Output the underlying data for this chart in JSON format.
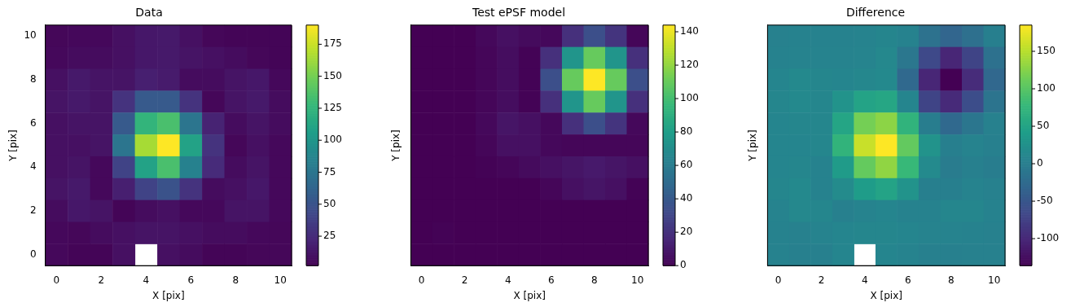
{
  "chart_data": [
    {
      "type": "heatmap",
      "title": "Data",
      "xlabel": "X [pix]",
      "ylabel": "Y [pix]",
      "categories": [
        "0",
        null,
        "2",
        null,
        "4",
        null,
        "6",
        null,
        "8",
        null,
        "10"
      ],
      "y_categories": [
        "10",
        null,
        "8",
        null,
        "6",
        null,
        "4",
        null,
        "2",
        null,
        "0"
      ],
      "cells": [
        [
          5,
          6,
          6,
          10,
          14,
          15,
          10,
          5,
          4,
          4,
          4
        ],
        [
          6,
          8,
          8,
          10,
          14,
          15,
          12,
          10,
          8,
          5,
          4
        ],
        [
          10,
          15,
          12,
          12,
          18,
          16,
          8,
          8,
          12,
          14,
          6
        ],
        [
          12,
          15,
          12,
          30,
          55,
          55,
          30,
          5,
          12,
          15,
          8
        ],
        [
          10,
          12,
          12,
          55,
          125,
          135,
          75,
          20,
          8,
          12,
          8
        ],
        [
          10,
          10,
          12,
          75,
          165,
          190,
          110,
          30,
          5,
          10,
          6
        ],
        [
          10,
          12,
          6,
          40,
          110,
          135,
          85,
          25,
          8,
          12,
          6
        ],
        [
          12,
          15,
          6,
          18,
          40,
          50,
          30,
          8,
          10,
          14,
          6
        ],
        [
          8,
          14,
          12,
          4,
          8,
          10,
          6,
          6,
          12,
          12,
          6
        ],
        [
          6,
          5,
          8,
          10,
          12,
          12,
          10,
          8,
          8,
          6,
          5
        ],
        [
          6,
          4,
          4,
          10,
          null,
          10,
          8,
          4,
          4,
          5,
          5
        ]
      ],
      "clim": [
        2,
        190
      ],
      "cticks": [
        25,
        50,
        75,
        100,
        125,
        150,
        175
      ]
    },
    {
      "type": "heatmap",
      "title": "Test ePSF model",
      "xlabel": "X [pix]",
      "ylabel": "Y [pix]",
      "tick_labels": "x",
      "categories": [
        "0",
        null,
        "2",
        null,
        "4",
        null,
        "6",
        null,
        "8",
        null,
        "10"
      ],
      "y_categories": [
        "10",
        null,
        "8",
        null,
        "6",
        null,
        "4",
        null,
        "2",
        null,
        "0"
      ],
      "cells": [
        [
          0,
          0,
          0,
          3,
          6,
          4,
          3,
          20,
          35,
          22,
          2
        ],
        [
          0,
          0,
          0,
          2,
          5,
          1,
          20,
          75,
          110,
          75,
          20
        ],
        [
          0,
          0,
          0,
          2,
          5,
          1,
          35,
          110,
          144,
          110,
          35
        ],
        [
          0,
          0,
          0,
          2,
          5,
          1,
          20,
          75,
          110,
          75,
          20
        ],
        [
          0,
          0,
          0,
          3,
          8,
          6,
          3,
          20,
          35,
          22,
          3
        ],
        [
          0,
          0,
          0,
          2,
          6,
          6,
          3,
          2,
          2,
          2,
          2
        ],
        [
          0,
          0,
          0,
          1,
          2,
          4,
          6,
          8,
          10,
          8,
          6
        ],
        [
          0,
          0,
          0,
          0,
          0,
          0,
          2,
          6,
          8,
          6,
          1
        ],
        [
          0,
          0,
          0,
          0,
          0,
          0,
          0,
          0,
          0,
          0,
          0
        ],
        [
          0,
          1,
          0,
          0,
          0,
          0,
          0,
          0,
          0,
          0,
          0
        ],
        [
          0,
          0,
          0,
          0,
          0,
          0,
          0,
          0,
          0,
          0,
          0
        ]
      ],
      "clim": [
        0,
        144
      ],
      "cticks": [
        0,
        20,
        40,
        60,
        80,
        100,
        120,
        140
      ]
    },
    {
      "type": "heatmap",
      "title": "Difference",
      "xlabel": "X [pix]",
      "ylabel": "Y [pix]",
      "tick_labels": "x",
      "categories": [
        "0",
        null,
        "2",
        null,
        "4",
        null,
        "6",
        null,
        "8",
        null,
        "10"
      ],
      "y_categories": [
        "10",
        null,
        "8",
        null,
        "6",
        null,
        "4",
        null,
        "2",
        null,
        "0"
      ],
      "cells": [
        [
          5,
          6,
          6,
          7,
          8,
          11,
          7,
          -15,
          -31,
          -18,
          2
        ],
        [
          6,
          8,
          8,
          8,
          9,
          14,
          -8,
          -65,
          -102,
          -70,
          -16
        ],
        [
          10,
          15,
          12,
          10,
          13,
          15,
          -27,
          -102,
          -136,
          -96,
          -29
        ],
        [
          12,
          15,
          12,
          28,
          50,
          54,
          10,
          -70,
          -98,
          -60,
          -12
        ],
        [
          10,
          12,
          12,
          52,
          117,
          129,
          72,
          0,
          -27,
          -10,
          5
        ],
        [
          10,
          10,
          12,
          73,
          159,
          185,
          107,
          28,
          3,
          8,
          4
        ],
        [
          10,
          12,
          6,
          39,
          108,
          131,
          79,
          17,
          -2,
          4,
          0
        ],
        [
          12,
          15,
          6,
          18,
          40,
          50,
          28,
          2,
          2,
          8,
          5
        ],
        [
          8,
          14,
          12,
          4,
          8,
          10,
          6,
          6,
          12,
          12,
          6
        ],
        [
          6,
          5,
          8,
          10,
          12,
          12,
          10,
          8,
          8,
          6,
          5
        ],
        [
          6,
          4,
          4,
          10,
          null,
          10,
          8,
          4,
          4,
          5,
          5
        ]
      ],
      "clim": [
        -136,
        185
      ],
      "cticks": [
        -100,
        -50,
        0,
        50,
        100,
        150
      ]
    }
  ]
}
